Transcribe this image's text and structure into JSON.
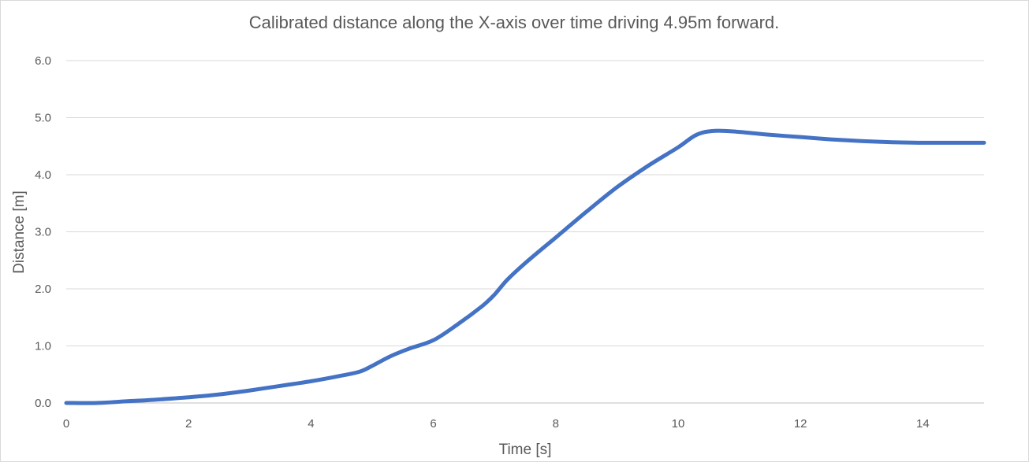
{
  "chart_data": {
    "type": "line",
    "title": "Calibrated distance along the X-axis over time driving 4.95m forward.",
    "xlabel": "Time [s]",
    "ylabel": "Distance [m]",
    "xlim": [
      0,
      15
    ],
    "ylim": [
      0,
      6
    ],
    "xticks": [
      0,
      2,
      4,
      6,
      8,
      10,
      12,
      14
    ],
    "xtick_labels": [
      "0",
      "2",
      "4",
      "6",
      "8",
      "10",
      "12",
      "14"
    ],
    "yticks": [
      0,
      1,
      2,
      3,
      4,
      5,
      6
    ],
    "ytick_labels": [
      "0.0",
      "1.0",
      "2.0",
      "3.0",
      "4.0",
      "5.0",
      "6.0"
    ],
    "grid": true,
    "legend": "none",
    "series": [
      {
        "color": "#4472c4",
        "x": [
          0,
          0.5,
          1,
          1.5,
          2,
          2.5,
          3,
          3.5,
          4,
          4.5,
          4.8,
          5,
          5.3,
          5.6,
          6,
          6.4,
          6.8,
          7,
          7.2,
          7.5,
          8,
          8.5,
          9,
          9.5,
          10,
          10.3,
          10.6,
          11,
          11.5,
          12,
          12.5,
          13,
          13.5,
          14,
          14.5,
          15
        ],
        "y": [
          0.0,
          0.0,
          0.03,
          0.06,
          0.1,
          0.15,
          0.22,
          0.3,
          0.38,
          0.48,
          0.55,
          0.65,
          0.82,
          0.95,
          1.1,
          1.38,
          1.7,
          1.9,
          2.15,
          2.45,
          2.9,
          3.35,
          3.78,
          4.15,
          4.48,
          4.7,
          4.77,
          4.75,
          4.7,
          4.66,
          4.62,
          4.59,
          4.57,
          4.56,
          4.56,
          4.56
        ]
      }
    ]
  }
}
